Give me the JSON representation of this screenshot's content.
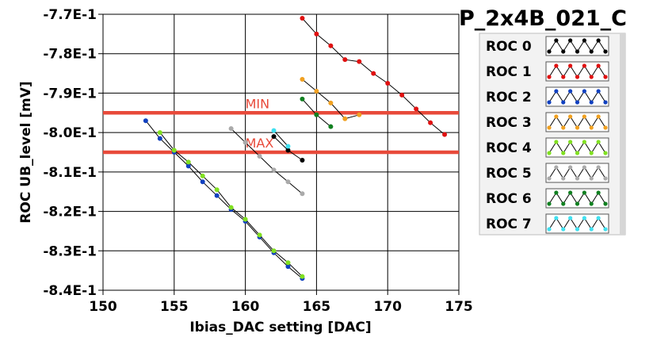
{
  "chart_data": {
    "type": "line",
    "title": "P_2x4B_021_C",
    "xlabel": "Ibias_DAC setting [DAC]",
    "ylabel": "ROC UB_level [mV]",
    "xlim": [
      150,
      175
    ],
    "ylim": [
      -0.84,
      -0.77
    ],
    "xticks": [
      150,
      155,
      160,
      165,
      170,
      175
    ],
    "xtick_labels": [
      "150",
      "155",
      "160",
      "165",
      "170",
      "175"
    ],
    "yticks": [
      -0.77,
      -0.78,
      -0.79,
      -0.8,
      -0.81,
      -0.82,
      -0.83,
      -0.84
    ],
    "ytick_labels": [
      "-7.7E-1",
      "-7.8E-1",
      "-7.9E-1",
      "-8.0E-1",
      "-8.1E-1",
      "-8.2E-1",
      "-8.3E-1",
      "-8.4E-1"
    ],
    "grid": true,
    "thresholds": [
      {
        "label": "MIN",
        "value": -0.795,
        "color": "#e84a3a"
      },
      {
        "label": "MAX",
        "value": -0.805,
        "color": "#e84a3a"
      }
    ],
    "legend_placement": "right",
    "series": [
      {
        "name": "ROC 0",
        "color": "#000000",
        "x": [
          162,
          163,
          164
        ],
        "y": [
          -0.801,
          -0.8045,
          -0.807
        ]
      },
      {
        "name": "ROC 1",
        "color": "#e01010",
        "x": [
          164,
          165,
          166,
          167,
          168,
          169,
          170,
          171,
          172,
          173,
          174
        ],
        "y": [
          -0.771,
          -0.775,
          -0.778,
          -0.7815,
          -0.782,
          -0.785,
          -0.7875,
          -0.7905,
          -0.794,
          -0.7975,
          -0.8005
        ]
      },
      {
        "name": "ROC 2",
        "color": "#1040c0",
        "x": [
          153,
          154,
          155,
          156,
          157,
          158,
          159,
          160,
          161,
          162,
          163,
          164
        ],
        "y": [
          -0.797,
          -0.8015,
          -0.805,
          -0.8085,
          -0.8125,
          -0.816,
          -0.8195,
          -0.8225,
          -0.8265,
          -0.8305,
          -0.834,
          -0.837
        ]
      },
      {
        "name": "ROC 3",
        "color": "#f0a020",
        "x": [
          164,
          165,
          166,
          167,
          168
        ],
        "y": [
          -0.7865,
          -0.7895,
          -0.7925,
          -0.7965,
          -0.7955
        ]
      },
      {
        "name": "ROC 4",
        "color": "#80e020",
        "x": [
          154,
          155,
          156,
          157,
          158,
          159,
          160,
          161,
          162,
          163,
          164
        ],
        "y": [
          -0.8,
          -0.8045,
          -0.8075,
          -0.811,
          -0.8145,
          -0.819,
          -0.822,
          -0.826,
          -0.83,
          -0.833,
          -0.8365
        ]
      },
      {
        "name": "ROC 5",
        "color": "#aaaaaa",
        "x": [
          159,
          160,
          161,
          162,
          163,
          164
        ],
        "y": [
          -0.799,
          -0.8025,
          -0.806,
          -0.8095,
          -0.8125,
          -0.8155
        ]
      },
      {
        "name": "ROC 6",
        "color": "#108020",
        "x": [
          164,
          165,
          166
        ],
        "y": [
          -0.7915,
          -0.7955,
          -0.7985
        ]
      },
      {
        "name": "ROC 7",
        "color": "#40e0f0",
        "x": [
          162,
          163
        ],
        "y": [
          -0.7995,
          -0.8035
        ]
      }
    ]
  }
}
